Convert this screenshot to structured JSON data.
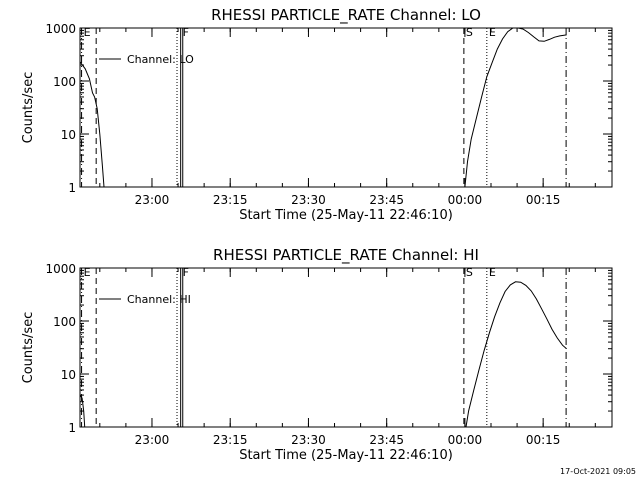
{
  "chart_data": [
    {
      "type": "line",
      "title": "RHESSI PARTICLE_RATE Channel: LO",
      "xlabel": "Start Time (25-May-11 22:46:10)",
      "ylabel": "Counts/sec",
      "yscale": "log",
      "ylim": [
        1,
        1000
      ],
      "xlim_minutes": [
        0,
        102
      ],
      "x_ticks": [
        {
          "t": 13.8,
          "label": "23:00"
        },
        {
          "t": 28.8,
          "label": "23:15"
        },
        {
          "t": 43.8,
          "label": "23:30"
        },
        {
          "t": 58.8,
          "label": "23:45"
        },
        {
          "t": 73.8,
          "label": "00:00"
        },
        {
          "t": 88.8,
          "label": "00:15"
        }
      ],
      "y_ticks": [
        {
          "v": 1,
          "label": "1"
        },
        {
          "v": 10,
          "label": "10"
        },
        {
          "v": 100,
          "label": "100"
        },
        {
          "v": 1000,
          "label": "1000"
        }
      ],
      "legend": "Channel: LO",
      "markers": [
        {
          "t": 0.3,
          "label": "E",
          "style": "dashdot"
        },
        {
          "t": 3.1,
          "label": "",
          "style": "dashed"
        },
        {
          "t": 18.6,
          "label": "",
          "style": "dotted"
        },
        {
          "t": 19.3,
          "label": "F",
          "style": "solid"
        },
        {
          "t": 19.7,
          "label": "",
          "style": "solid"
        },
        {
          "t": 73.6,
          "label": "S",
          "style": "dashed"
        },
        {
          "t": 78.0,
          "label": "E",
          "style": "dotted"
        },
        {
          "t": 93.2,
          "label": "",
          "style": "dashdot"
        }
      ],
      "series": [
        {
          "segments": [
            [
              [
                0.0,
                230
              ],
              [
                1.0,
                170
              ],
              [
                1.8,
                110
              ],
              [
                2.4,
                60
              ],
              [
                2.8,
                50
              ],
              [
                3.3,
                30
              ],
              [
                3.8,
                10
              ],
              [
                4.3,
                2.5
              ],
              [
                4.6,
                1
              ]
            ],
            [
              [
                73.8,
                1
              ],
              [
                74.3,
                3
              ],
              [
                75.0,
                8
              ],
              [
                76.0,
                20
              ],
              [
                77.0,
                50
              ],
              [
                78.0,
                120
              ],
              [
                79.0,
                220
              ],
              [
                80.0,
                400
              ],
              [
                81.0,
                620
              ],
              [
                82.0,
                850
              ],
              [
                83.0,
                1000
              ],
              [
                84.0,
                1000
              ],
              [
                85.0,
                950
              ],
              [
                86.0,
                820
              ],
              [
                87.0,
                680
              ],
              [
                88.0,
                570
              ],
              [
                89.0,
                560
              ],
              [
                90.0,
                610
              ],
              [
                91.0,
                670
              ],
              [
                92.0,
                710
              ],
              [
                93.3,
                740
              ]
            ]
          ]
        }
      ]
    },
    {
      "type": "line",
      "title": "RHESSI PARTICLE_RATE Channel: HI",
      "xlabel": "Start Time (25-May-11 22:46:10)",
      "ylabel": "Counts/sec",
      "yscale": "log",
      "ylim": [
        1,
        1000
      ],
      "xlim_minutes": [
        0,
        102
      ],
      "x_ticks": [
        {
          "t": 13.8,
          "label": "23:00"
        },
        {
          "t": 28.8,
          "label": "23:15"
        },
        {
          "t": 43.8,
          "label": "23:30"
        },
        {
          "t": 58.8,
          "label": "23:45"
        },
        {
          "t": 73.8,
          "label": "00:00"
        },
        {
          "t": 88.8,
          "label": "00:15"
        }
      ],
      "y_ticks": [
        {
          "v": 1,
          "label": "1"
        },
        {
          "v": 10,
          "label": "10"
        },
        {
          "v": 100,
          "label": "100"
        },
        {
          "v": 1000,
          "label": "1000"
        }
      ],
      "legend": "Channel: HI",
      "markers": [
        {
          "t": 0.3,
          "label": "E",
          "style": "dashdot"
        },
        {
          "t": 3.1,
          "label": "",
          "style": "dashed"
        },
        {
          "t": 18.6,
          "label": "",
          "style": "dotted"
        },
        {
          "t": 19.3,
          "label": "F",
          "style": "solid"
        },
        {
          "t": 19.7,
          "label": "",
          "style": "solid"
        },
        {
          "t": 73.6,
          "label": "S",
          "style": "dashed"
        },
        {
          "t": 78.0,
          "label": "E",
          "style": "dotted"
        },
        {
          "t": 93.2,
          "label": "",
          "style": "dashdot"
        }
      ],
      "series": [
        {
          "segments": [
            [
              [
                0.0,
                4
              ],
              [
                0.4,
                3.5
              ],
              [
                0.7,
                2
              ],
              [
                0.9,
                1
              ]
            ],
            [
              [
                74.0,
                1
              ],
              [
                74.5,
                2
              ],
              [
                75.5,
                5
              ],
              [
                76.5,
                12
              ],
              [
                77.5,
                28
              ],
              [
                78.5,
                60
              ],
              [
                79.5,
                120
              ],
              [
                80.5,
                220
              ],
              [
                81.5,
                360
              ],
              [
                82.5,
                480
              ],
              [
                83.5,
                550
              ],
              [
                84.5,
                540
              ],
              [
                85.5,
                470
              ],
              [
                86.5,
                370
              ],
              [
                87.5,
                260
              ],
              [
                88.5,
                170
              ],
              [
                89.5,
                110
              ],
              [
                90.5,
                70
              ],
              [
                91.5,
                48
              ],
              [
                92.5,
                35
              ],
              [
                93.3,
                30
              ]
            ]
          ]
        }
      ]
    }
  ],
  "footer": {
    "timestamp": "17-Oct-2021 09:05"
  }
}
